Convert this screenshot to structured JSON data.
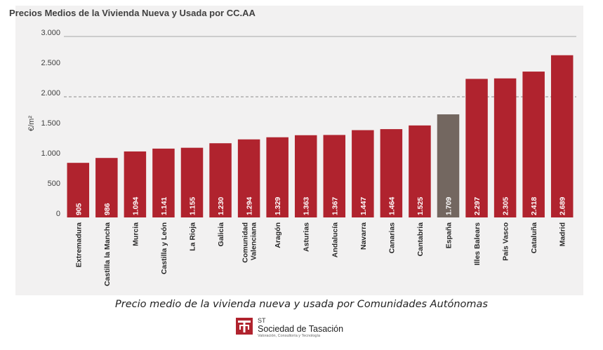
{
  "chart_data": {
    "type": "bar",
    "title": "Precios Medios de la Vivienda Nueva y Usada por CC.AA",
    "ylabel": "€/m²",
    "xlabel": "",
    "ylim": [
      0,
      3000
    ],
    "yticks": [
      0,
      500,
      1000,
      1500,
      2000,
      2500,
      3000
    ],
    "ytick_labels": [
      "0",
      "500",
      "1.000",
      "1.500",
      "2.000",
      "2.500",
      "3.000"
    ],
    "reference_line": 2000,
    "categories": [
      "Extremadura",
      "Castilla la Mancha",
      "Murcia",
      "Castilla y León",
      "La Rioja",
      "Galicia",
      "Comunidad Valenciana",
      "Aragón",
      "Asturias",
      "Andalucía",
      "Navarra",
      "Canarias",
      "Cantabria",
      "España",
      "Illes Balears",
      "País Vasco",
      "Cataluña",
      "Madrid"
    ],
    "values": [
      905,
      986,
      1094,
      1141,
      1155,
      1230,
      1294,
      1329,
      1363,
      1367,
      1447,
      1464,
      1525,
      1709,
      2297,
      2305,
      2418,
      2689
    ],
    "value_labels": [
      "905",
      "986",
      "1.094",
      "1.141",
      "1.155",
      "1.230",
      "1.294",
      "1.329",
      "1.363",
      "1.367",
      "1.447",
      "1.464",
      "1.525",
      "1.709",
      "2.297",
      "2.305",
      "2.418",
      "2.689"
    ],
    "highlight_category": "España",
    "colors": {
      "bar": "#b0232e",
      "highlight": "#736760",
      "grid": "#a6a6a6",
      "text": "#404040"
    }
  },
  "caption": "Precio medio de la vivienda nueva y usada por Comunidades Autónomas",
  "logo": {
    "abbr": "ST",
    "name": "Sociedad de Tasación",
    "tagline": "Valoración, Consultoría y Tecnología",
    "color": "#b0232e"
  }
}
